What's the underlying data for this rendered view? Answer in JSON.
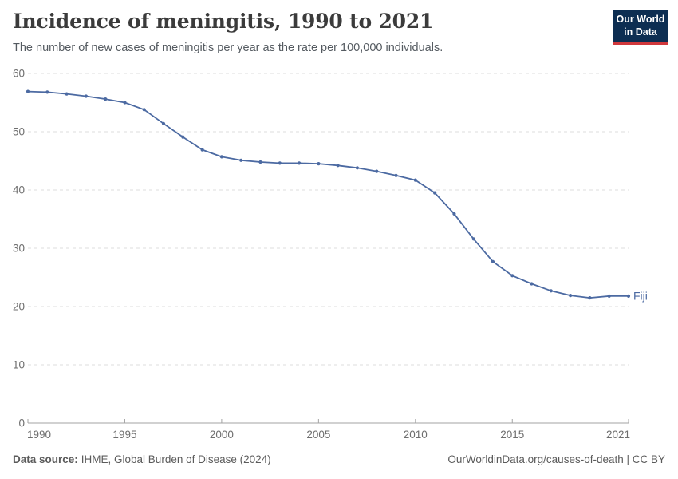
{
  "header": {
    "title": "Incidence of meningitis, 1990 to 2021",
    "subtitle": "The number of new cases of meningitis per year as the rate per 100,000 individuals.",
    "logo": {
      "line1": "Our World",
      "line2": "in Data",
      "bg_color": "#0d2e52",
      "accent_color": "#d0383c"
    }
  },
  "chart_data": {
    "type": "line",
    "title": "Incidence of meningitis, 1990 to 2021",
    "xlabel": "",
    "ylabel": "",
    "x": [
      1990,
      1991,
      1992,
      1993,
      1994,
      1995,
      1996,
      1997,
      1998,
      1999,
      2000,
      2001,
      2002,
      2003,
      2004,
      2005,
      2006,
      2007,
      2008,
      2009,
      2010,
      2011,
      2012,
      2013,
      2014,
      2015,
      2016,
      2017,
      2018,
      2019,
      2020,
      2021
    ],
    "series": [
      {
        "name": "Fiji",
        "color": "#4c6aa2",
        "values": [
          56.9,
          56.8,
          56.5,
          56.1,
          55.6,
          55.0,
          53.8,
          51.4,
          49.1,
          46.9,
          45.7,
          45.1,
          44.8,
          44.6,
          44.6,
          44.5,
          44.2,
          43.8,
          43.2,
          42.5,
          41.7,
          39.5,
          35.9,
          31.6,
          27.7,
          25.3,
          23.9,
          22.7,
          21.9,
          21.5,
          21.8,
          21.8
        ]
      }
    ],
    "x_ticks": [
      1990,
      1995,
      2000,
      2005,
      2010,
      2015,
      2021
    ],
    "y_ticks": [
      0,
      10,
      20,
      30,
      40,
      50,
      60
    ],
    "xlim": [
      1990,
      2021
    ],
    "ylim": [
      0,
      60
    ],
    "grid": "horizontal-dashed",
    "grid_color": "#dcdcdc",
    "axis_color": "#a3a3a3",
    "tick_label_color": "#6e6e6e",
    "legend_position": "end-of-line-label",
    "end_label": "Fiji"
  },
  "footer": {
    "source_label": "Data source:",
    "source_text": "IHME, Global Burden of Disease (2024)",
    "credit": "OurWorldinData.org/causes-of-death | CC BY"
  }
}
